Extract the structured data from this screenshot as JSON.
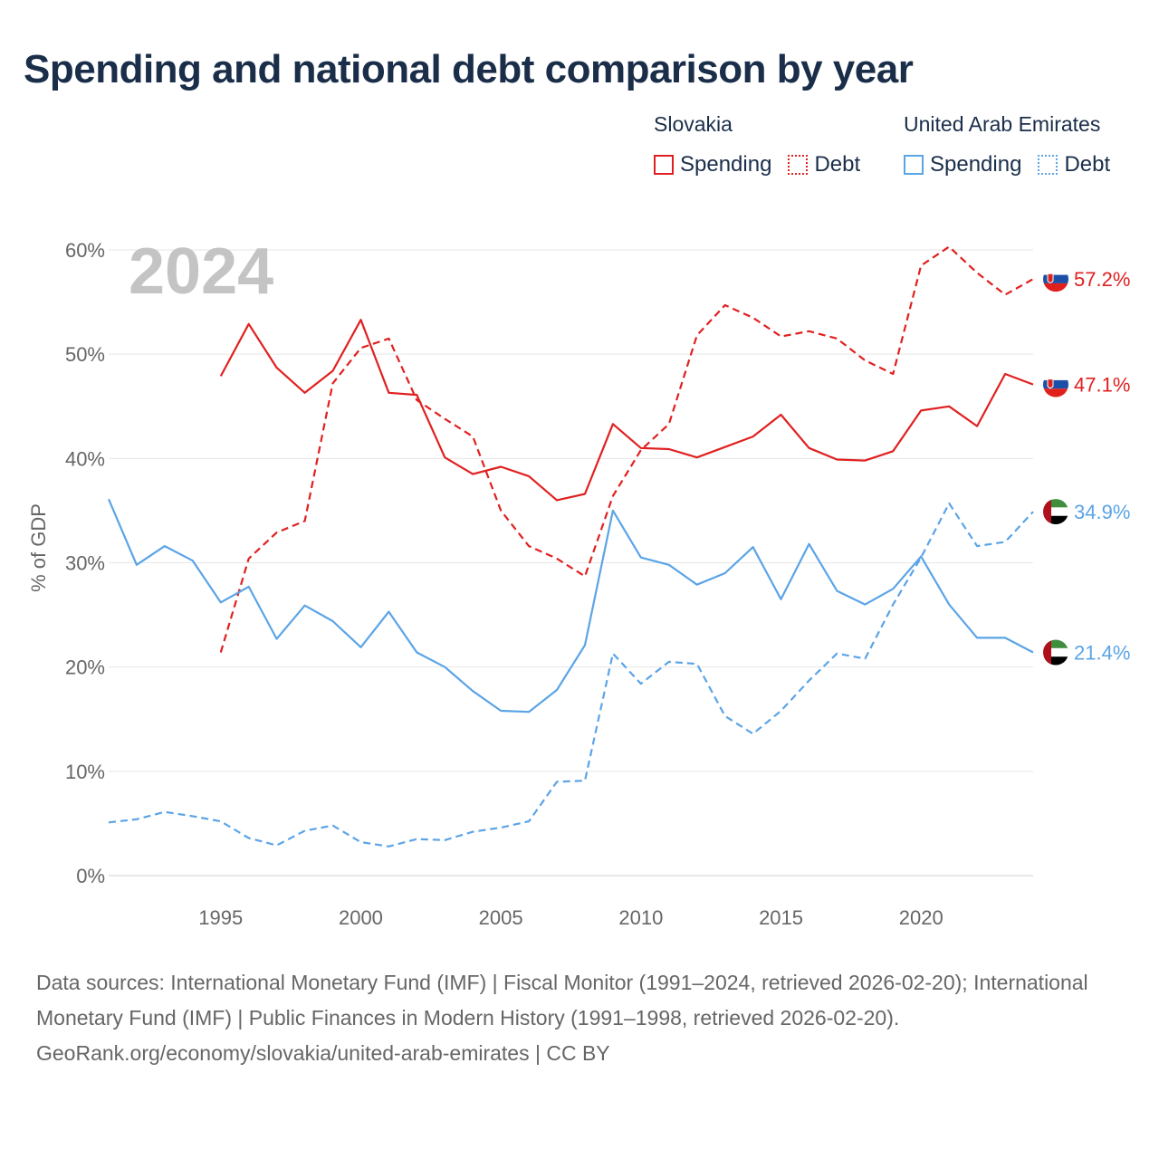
{
  "title": "Spending and national debt comparison by year",
  "legend": {
    "groups": [
      {
        "country": "Slovakia",
        "color": "#e02020",
        "items": [
          {
            "label": "Spending",
            "style": "solid"
          },
          {
            "label": "Debt",
            "style": "dotted"
          }
        ]
      },
      {
        "country": "United Arab Emirates",
        "color": "#5ba4e6",
        "items": [
          {
            "label": "Spending",
            "style": "solid"
          },
          {
            "label": "Debt",
            "style": "dotted"
          }
        ]
      }
    ]
  },
  "watermark_year": "2024",
  "footer": {
    "sources": "Data sources: International Monetary Fund (IMF) | Fiscal Monitor (1991–2024, retrieved 2026-02-20); International Monetary Fund (IMF) | Public Finances in Modern History (1991–1998, retrieved 2026-02-20).",
    "credit": "GeoRank.org/economy/slovakia/united-arab-emirates | CC BY"
  },
  "chart_data": {
    "type": "line",
    "title": "Spending and national debt comparison by year",
    "xlabel": "",
    "ylabel": "% of GDP",
    "xlim": [
      1991,
      2024
    ],
    "ylim": [
      0,
      60
    ],
    "x_ticks": [
      1995,
      2000,
      2005,
      2010,
      2015,
      2020
    ],
    "y_ticks": [
      0,
      10,
      20,
      30,
      40,
      50,
      60
    ],
    "y_tick_labels": [
      "0%",
      "10%",
      "20%",
      "30%",
      "40%",
      "50%",
      "60%"
    ],
    "grid": true,
    "series": [
      {
        "name": "Slovakia Spending",
        "country": "Slovakia",
        "measure": "Spending",
        "color": "#e02020",
        "dash": "solid",
        "x": [
          1995,
          1996,
          1997,
          1998,
          1999,
          2000,
          2001,
          2002,
          2003,
          2004,
          2005,
          2006,
          2007,
          2008,
          2009,
          2010,
          2011,
          2012,
          2013,
          2014,
          2015,
          2016,
          2017,
          2018,
          2019,
          2020,
          2021,
          2022,
          2023,
          2024
        ],
        "values": [
          47.9,
          52.9,
          48.7,
          46.3,
          48.4,
          53.3,
          46.3,
          46.1,
          40.1,
          38.5,
          39.2,
          38.3,
          36.0,
          36.6,
          43.3,
          41.0,
          40.9,
          40.1,
          41.1,
          42.1,
          44.2,
          41.0,
          39.9,
          39.8,
          40.7,
          44.6,
          45.0,
          43.1,
          48.1,
          47.1
        ],
        "end_label": "47.1%"
      },
      {
        "name": "Slovakia Debt",
        "country": "Slovakia",
        "measure": "Debt",
        "color": "#e02020",
        "dash": "dashed",
        "x": [
          1995,
          1996,
          1997,
          1998,
          1999,
          2000,
          2001,
          2002,
          2003,
          2004,
          2005,
          2006,
          2007,
          2008,
          2009,
          2010,
          2011,
          2012,
          2013,
          2014,
          2015,
          2016,
          2017,
          2018,
          2019,
          2020,
          2021,
          2022,
          2023,
          2024
        ],
        "values": [
          21.4,
          30.4,
          32.9,
          34.0,
          47.2,
          50.6,
          51.5,
          45.6,
          43.8,
          42.1,
          35.0,
          31.6,
          30.4,
          28.7,
          36.4,
          40.8,
          43.3,
          51.8,
          54.7,
          53.5,
          51.7,
          52.2,
          51.5,
          49.4,
          48.1,
          58.5,
          60.3,
          57.8,
          55.7,
          57.2
        ],
        "end_label": "57.2%"
      },
      {
        "name": "United Arab Emirates Spending",
        "country": "United Arab Emirates",
        "measure": "Spending",
        "color": "#5ba4e6",
        "dash": "solid",
        "x": [
          1991,
          1992,
          1993,
          1994,
          1995,
          1996,
          1997,
          1998,
          1999,
          2000,
          2001,
          2002,
          2003,
          2004,
          2005,
          2006,
          2007,
          2008,
          2009,
          2010,
          2011,
          2012,
          2013,
          2014,
          2015,
          2016,
          2017,
          2018,
          2019,
          2020,
          2021,
          2022,
          2023,
          2024
        ],
        "values": [
          36.1,
          29.8,
          31.6,
          30.2,
          26.2,
          27.7,
          22.7,
          25.9,
          24.4,
          21.9,
          25.3,
          21.4,
          20.0,
          17.7,
          15.8,
          15.7,
          17.8,
          22.1,
          35.0,
          30.5,
          29.8,
          27.9,
          29.0,
          31.5,
          26.5,
          31.8,
          27.3,
          26.0,
          27.5,
          30.6,
          26.0,
          22.8,
          22.8,
          21.4
        ],
        "end_label": "21.4%"
      },
      {
        "name": "United Arab Emirates Debt",
        "country": "United Arab Emirates",
        "measure": "Debt",
        "color": "#5ba4e6",
        "dash": "dashed",
        "x": [
          1991,
          1992,
          1993,
          1994,
          1995,
          1996,
          1997,
          1998,
          1999,
          2000,
          2001,
          2002,
          2003,
          2004,
          2005,
          2006,
          2007,
          2008,
          2009,
          2010,
          2011,
          2012,
          2013,
          2014,
          2015,
          2016,
          2017,
          2018,
          2019,
          2020,
          2021,
          2022,
          2023,
          2024
        ],
        "values": [
          5.1,
          5.4,
          6.1,
          5.7,
          5.2,
          3.6,
          2.9,
          4.3,
          4.8,
          3.2,
          2.8,
          3.5,
          3.4,
          4.2,
          4.6,
          5.2,
          9.0,
          9.1,
          21.3,
          18.4,
          20.5,
          20.3,
          15.3,
          13.6,
          15.8,
          18.7,
          21.3,
          20.8,
          26.0,
          30.5,
          35.7,
          31.6,
          32.0,
          34.9
        ],
        "end_label": "34.9%"
      }
    ]
  }
}
